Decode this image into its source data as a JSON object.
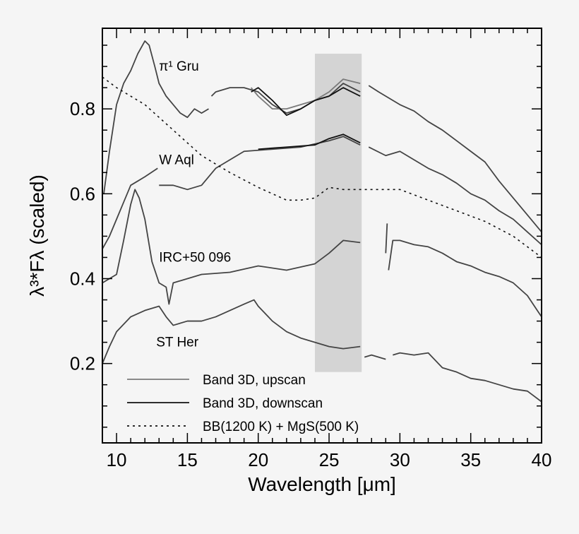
{
  "chart_data": {
    "type": "line",
    "xlabel": "Wavelength [μm]",
    "ylabel": "λ³*Fλ (scaled)",
    "xlim": [
      9,
      40
    ],
    "ylim": [
      0.013,
      0.99
    ],
    "xticks": [
      10,
      15,
      20,
      25,
      30,
      35,
      40
    ],
    "yticks": [
      0.2,
      0.4,
      0.6,
      0.8
    ],
    "grid": false,
    "legend_placement": "bottom-left",
    "shaded_region": {
      "x": [
        24,
        27.3
      ],
      "y": [
        0.18,
        0.93
      ],
      "color": "#d4d4d4"
    },
    "legend": [
      {
        "label": "Band 3D, upscan",
        "style": "solid",
        "color": "#7a7a7a"
      },
      {
        "label": "Band 3D, downscan",
        "style": "solid",
        "color": "#111111"
      },
      {
        "label": "BB(1200 K) + MgS(500 K)",
        "style": "dotted",
        "color": "#111111"
      }
    ],
    "annotations": [
      {
        "text": "π¹ Gru",
        "x": 13.0,
        "y": 0.89
      },
      {
        "text": "W Aql",
        "x": 13.0,
        "y": 0.67
      },
      {
        "text": "IRC+50 096",
        "x": 13.0,
        "y": 0.44
      },
      {
        "text": "ST Her",
        "x": 12.8,
        "y": 0.24
      }
    ],
    "series": [
      {
        "id": "pi1-gru",
        "color": "#444444",
        "style": "solid",
        "segments": [
          [
            [
              9.1,
              0.6
            ],
            [
              9.5,
              0.7
            ],
            [
              10,
              0.81
            ],
            [
              10.5,
              0.86
            ],
            [
              11,
              0.89
            ],
            [
              11.5,
              0.93
            ],
            [
              12,
              0.96
            ],
            [
              12.3,
              0.95
            ],
            [
              12.7,
              0.9
            ],
            [
              13,
              0.86
            ],
            [
              13.5,
              0.83
            ],
            [
              14,
              0.81
            ],
            [
              14.5,
              0.79
            ],
            [
              15,
              0.78
            ],
            [
              15.5,
              0.8
            ],
            [
              16,
              0.79
            ],
            [
              16.5,
              0.8
            ]
          ],
          [
            [
              16.7,
              0.83
            ],
            [
              17,
              0.84
            ],
            [
              18,
              0.85
            ],
            [
              19,
              0.85
            ],
            [
              20,
              0.84
            ],
            [
              21,
              0.81
            ],
            [
              22,
              0.79
            ],
            [
              23,
              0.8
            ],
            [
              24,
              0.82
            ],
            [
              25,
              0.83
            ],
            [
              26,
              0.86
            ],
            [
              27.2,
              0.84
            ]
          ],
          [
            [
              27.8,
              0.855
            ],
            [
              28.5,
              0.84
            ],
            [
              29,
              0.83
            ],
            [
              30,
              0.81
            ],
            [
              31,
              0.795
            ],
            [
              32,
              0.77
            ],
            [
              33,
              0.75
            ],
            [
              34,
              0.725
            ],
            [
              35,
              0.7
            ],
            [
              36,
              0.675
            ],
            [
              37,
              0.63
            ],
            [
              38,
              0.59
            ],
            [
              39,
              0.55
            ],
            [
              40,
              0.51
            ]
          ]
        ]
      },
      {
        "id": "pi1-gru-upscan",
        "color": "#7a7a7a",
        "style": "solid",
        "segments": [
          [
            [
              19.5,
              0.85
            ],
            [
              20,
              0.83
            ],
            [
              21,
              0.8
            ],
            [
              22,
              0.8
            ],
            [
              23,
              0.81
            ],
            [
              24,
              0.82
            ],
            [
              25,
              0.84
            ],
            [
              26,
              0.87
            ],
            [
              27.2,
              0.86
            ]
          ]
        ]
      },
      {
        "id": "pi1-gru-downscan",
        "color": "#111111",
        "style": "solid",
        "segments": [
          [
            [
              19.5,
              0.84
            ],
            [
              20,
              0.85
            ],
            [
              21,
              0.82
            ],
            [
              22,
              0.785
            ],
            [
              23,
              0.8
            ],
            [
              24,
              0.82
            ],
            [
              25,
              0.83
            ],
            [
              26,
              0.85
            ],
            [
              27.2,
              0.83
            ]
          ]
        ]
      },
      {
        "id": "w-aql",
        "color": "#444444",
        "style": "solid",
        "segments": [
          [
            [
              9,
              0.47
            ],
            [
              9.5,
              0.5
            ],
            [
              10,
              0.54
            ],
            [
              10.5,
              0.58
            ],
            [
              11,
              0.62
            ],
            [
              11.5,
              0.63
            ],
            [
              12,
              0.64
            ],
            [
              12.9,
              0.66
            ]
          ],
          [
            [
              13,
              0.62
            ],
            [
              14,
              0.62
            ],
            [
              15,
              0.61
            ],
            [
              16,
              0.62
            ],
            [
              16.5,
              0.64
            ],
            [
              17,
              0.66
            ],
            [
              18,
              0.68
            ],
            [
              19,
              0.7
            ],
            [
              21,
              0.705
            ],
            [
              23,
              0.71
            ],
            [
              25,
              0.725
            ],
            [
              26,
              0.735
            ],
            [
              27.2,
              0.715
            ]
          ],
          [
            [
              27.8,
              0.71
            ],
            [
              29,
              0.69
            ],
            [
              30,
              0.7
            ],
            [
              31,
              0.68
            ],
            [
              32,
              0.66
            ],
            [
              33,
              0.645
            ],
            [
              34,
              0.625
            ],
            [
              35,
              0.6
            ],
            [
              36,
              0.585
            ],
            [
              37,
              0.56
            ],
            [
              38,
              0.54
            ],
            [
              39,
              0.51
            ],
            [
              40,
              0.48
            ]
          ]
        ]
      },
      {
        "id": "w-aql-downscan",
        "color": "#111111",
        "style": "solid",
        "segments": [
          [
            [
              20,
              0.705
            ],
            [
              22,
              0.71
            ],
            [
              24,
              0.715
            ],
            [
              25,
              0.73
            ],
            [
              26,
              0.74
            ],
            [
              27.2,
              0.72
            ]
          ]
        ]
      },
      {
        "id": "bb-mgs",
        "color": "#111111",
        "style": "dotted",
        "segments": [
          [
            [
              9,
              0.875
            ],
            [
              10,
              0.85
            ],
            [
              12,
              0.81
            ],
            [
              14,
              0.75
            ],
            [
              16,
              0.69
            ],
            [
              18,
              0.65
            ],
            [
              20,
              0.615
            ],
            [
              22,
              0.585
            ],
            [
              23,
              0.585
            ],
            [
              24,
              0.59
            ],
            [
              25,
              0.615
            ],
            [
              26,
              0.61
            ],
            [
              28,
              0.61
            ],
            [
              30,
              0.61
            ],
            [
              32,
              0.585
            ],
            [
              34,
              0.56
            ],
            [
              36,
              0.535
            ],
            [
              38,
              0.5
            ],
            [
              40,
              0.45
            ]
          ]
        ]
      },
      {
        "id": "irc-50-096",
        "color": "#444444",
        "style": "solid",
        "segments": [
          [
            [
              9,
              0.39
            ],
            [
              10,
              0.41
            ],
            [
              10.5,
              0.49
            ],
            [
              11,
              0.575
            ],
            [
              11.3,
              0.61
            ],
            [
              11.6,
              0.59
            ],
            [
              12,
              0.54
            ],
            [
              12.5,
              0.44
            ],
            [
              13,
              0.39
            ],
            [
              13.5,
              0.38
            ],
            [
              13.7,
              0.34
            ],
            [
              14,
              0.39
            ],
            [
              16,
              0.41
            ],
            [
              18,
              0.415
            ],
            [
              20,
              0.43
            ],
            [
              22,
              0.42
            ],
            [
              24,
              0.435
            ],
            [
              25,
              0.46
            ],
            [
              26,
              0.49
            ],
            [
              27.2,
              0.485
            ]
          ],
          [
            [
              29,
              0.46
            ],
            [
              29.1,
              0.53
            ]
          ],
          [
            [
              29.2,
              0.42
            ],
            [
              29.5,
              0.49
            ],
            [
              30,
              0.49
            ],
            [
              31,
              0.48
            ],
            [
              32,
              0.475
            ],
            [
              33,
              0.46
            ],
            [
              34,
              0.44
            ],
            [
              35,
              0.43
            ],
            [
              36,
              0.415
            ],
            [
              37,
              0.405
            ],
            [
              38,
              0.39
            ],
            [
              39,
              0.36
            ],
            [
              40,
              0.31
            ]
          ]
        ]
      },
      {
        "id": "st-her",
        "color": "#444444",
        "style": "solid",
        "segments": [
          [
            [
              9,
              0.2
            ],
            [
              9.5,
              0.24
            ],
            [
              10,
              0.275
            ],
            [
              11,
              0.31
            ],
            [
              12,
              0.325
            ],
            [
              13,
              0.335
            ],
            [
              13.5,
              0.31
            ],
            [
              14,
              0.29
            ],
            [
              15,
              0.3
            ],
            [
              16,
              0.3
            ],
            [
              17,
              0.31
            ],
            [
              18,
              0.325
            ],
            [
              19,
              0.34
            ],
            [
              19.7,
              0.35
            ],
            [
              20,
              0.335
            ],
            [
              21,
              0.3
            ],
            [
              22,
              0.275
            ],
            [
              23,
              0.26
            ],
            [
              24,
              0.25
            ],
            [
              25,
              0.24
            ],
            [
              26,
              0.235
            ],
            [
              27.2,
              0.24
            ]
          ],
          [
            [
              27.5,
              0.215
            ],
            [
              28,
              0.22
            ],
            [
              29,
              0.21
            ]
          ],
          [
            [
              29.5,
              0.22
            ],
            [
              30,
              0.225
            ],
            [
              31,
              0.22
            ],
            [
              32,
              0.225
            ],
            [
              33,
              0.19
            ],
            [
              34,
              0.18
            ],
            [
              35,
              0.165
            ],
            [
              36,
              0.16
            ],
            [
              37,
              0.15
            ],
            [
              38,
              0.14
            ],
            [
              39,
              0.135
            ],
            [
              40,
              0.11
            ]
          ]
        ]
      }
    ]
  }
}
